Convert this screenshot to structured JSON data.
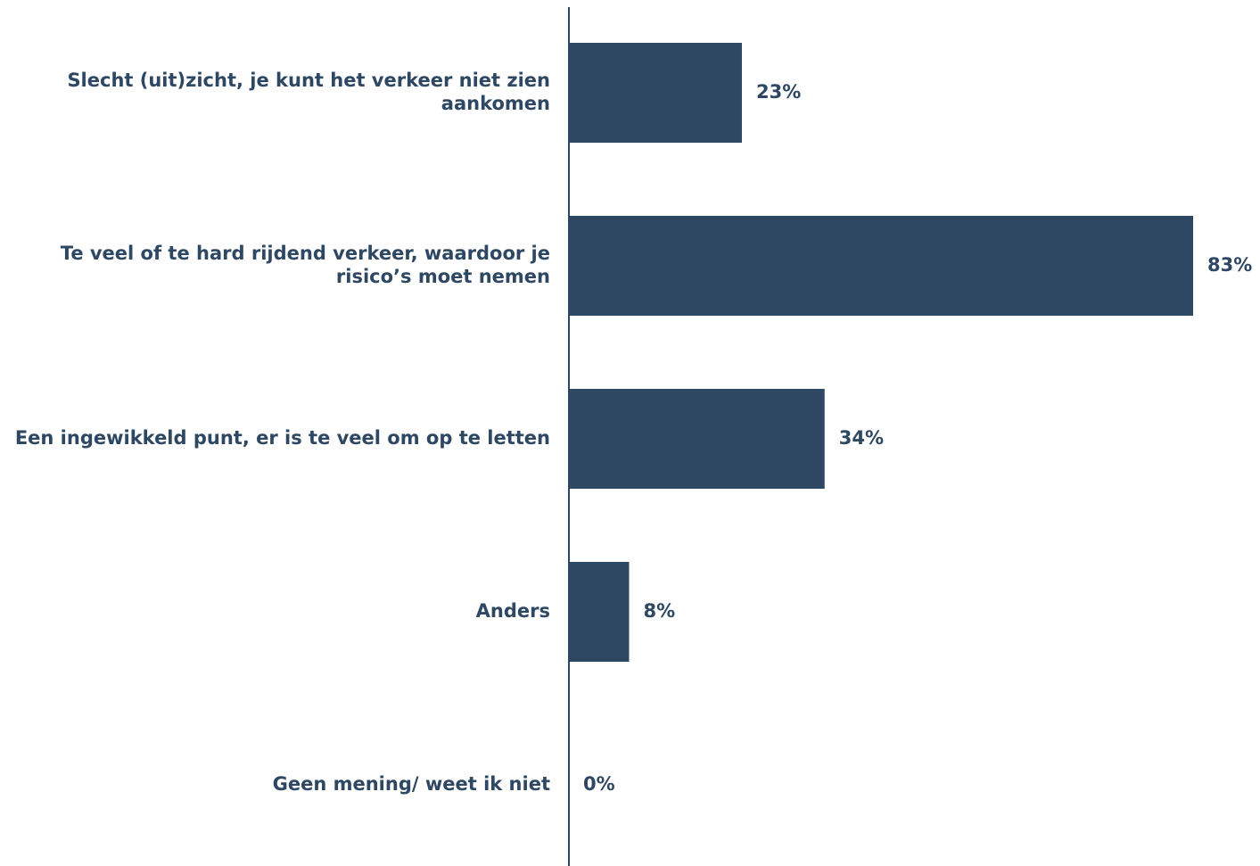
{
  "chart_data": {
    "type": "bar",
    "orientation": "horizontal",
    "categories": [
      [
        "Slecht (uit)zicht, je kunt het verkeer niet zien",
        "aankomen"
      ],
      [
        "Te veel of te hard rijdend verkeer, waardoor je",
        "risico’s moet nemen"
      ],
      [
        "Een ingewikkeld punt, er is te veel om op te letten"
      ],
      [
        "Anders"
      ],
      [
        "Geen mening/ weet ik niet"
      ]
    ],
    "values": [
      23,
      83,
      34,
      8,
      0
    ],
    "value_labels": [
      "23%",
      "83%",
      "34%",
      "8%",
      "0%"
    ],
    "xlim": [
      0,
      83
    ],
    "grid": false,
    "legend": "none",
    "colors": {
      "bar": "#2e4762",
      "text": "#2e4762",
      "axis": "#2e4762"
    }
  }
}
